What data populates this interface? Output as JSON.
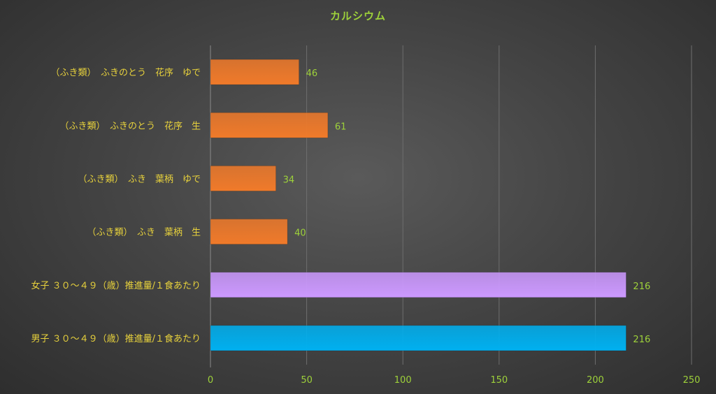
{
  "chart_data": {
    "type": "bar",
    "orientation": "horizontal",
    "title": "カルシウム",
    "categories": [
      "（ふき類）　ふきのとう　花序　ゆで",
      "（ふき類）　ふきのとう　花序　生",
      "（ふき類）　ふき　葉柄　ゆで",
      "（ふき類）　ふき　葉柄　生",
      "女子 ３０～４９（歳）推進量/１食あたり",
      "男子 ３０～４９（歳）推進量/１食あたり"
    ],
    "values": [
      46,
      61,
      34,
      40,
      216,
      216
    ],
    "bar_colors": [
      "#f07a2a",
      "#f07a2a",
      "#f07a2a",
      "#f07a2a",
      "#cc99ff",
      "#00b0f0"
    ],
    "xlim": [
      0,
      250
    ],
    "xticks": [
      0,
      50,
      100,
      150,
      200,
      250
    ],
    "grid": "vertical",
    "legend": "none",
    "data_labels": true,
    "colors": {
      "title": "#9ed23a",
      "category_labels": "#e8d23c",
      "tick_labels": "#9ed23a",
      "data_labels": "#9ed23a",
      "gridlines": "#6e6e6e"
    }
  }
}
